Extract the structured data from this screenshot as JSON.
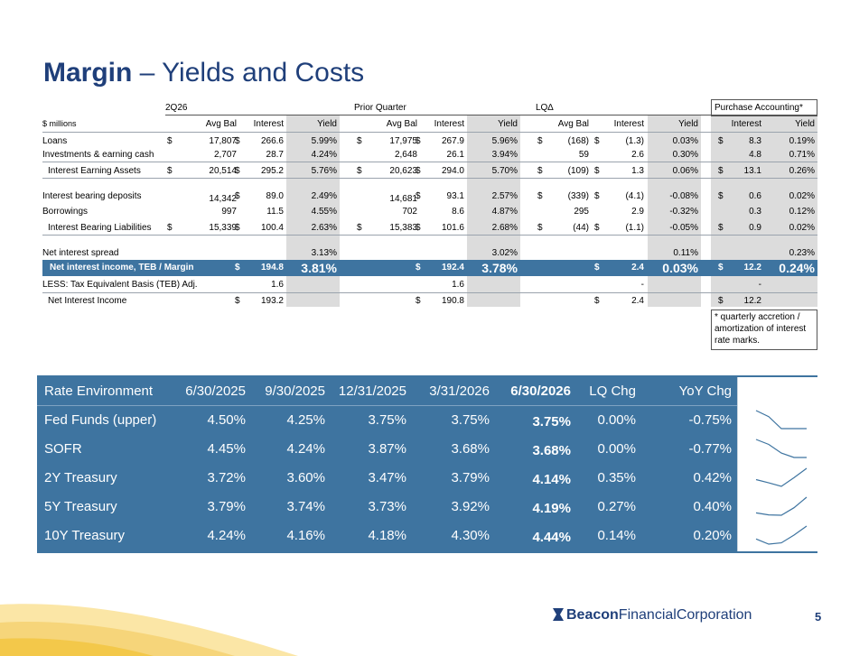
{
  "title": {
    "bold": "Margin",
    "rest": " – Yields and Costs"
  },
  "groups": {
    "cur": "2Q26",
    "prior": "Prior Quarter",
    "lq": "LQ∆",
    "pa": "Purchase Accounting*"
  },
  "col_headers": {
    "units": "$ millions",
    "avg_bal": "Avg Bal",
    "interest": "Interest",
    "yield": "Yield"
  },
  "rows": [
    {
      "label": "Loans",
      "c": [
        "$",
        "17,807",
        "$",
        "266.6",
        "5.99%",
        "$",
        "17,975",
        "$",
        "267.9",
        "5.96%",
        "$",
        "(168)",
        "$",
        "(1.3)",
        "0.03%",
        "$",
        "8.3",
        "0.19%"
      ]
    },
    {
      "label": "Investments & earning cash",
      "c": [
        "",
        "2,707",
        "",
        "28.7",
        "4.24%",
        "",
        "2,648",
        "",
        "26.1",
        "3.94%",
        "",
        "59",
        "",
        "2.6",
        "0.30%",
        "",
        "4.8",
        "0.71%"
      ]
    },
    {
      "label": "Interest Earning Assets",
      "c": [
        "$",
        "20,514",
        "$",
        "295.2",
        "5.76%",
        "$",
        "20,623",
        "$",
        "294.0",
        "5.70%",
        "$",
        "(109)",
        "$",
        "1.3",
        "0.06%",
        "$",
        "13.1",
        "0.26%"
      ]
    },
    {
      "label": "Interest bearing deposits",
      "c": [
        "",
        "14,342",
        "$",
        "89.0",
        "2.49%",
        "",
        "14,681",
        "$",
        "93.1",
        "2.57%",
        "$",
        "(339)",
        "$",
        "(4.1)",
        "-0.08%",
        "$",
        "0.6",
        "0.02%"
      ]
    },
    {
      "label": "Borrowings",
      "c": [
        "",
        "997",
        "",
        "11.5",
        "4.55%",
        "",
        "702",
        "",
        "8.6",
        "4.87%",
        "",
        "295",
        "",
        "2.9",
        "-0.32%",
        "",
        "0.3",
        "0.12%"
      ]
    },
    {
      "label": "Interest Bearing Liabilities",
      "c": [
        "$",
        "15,339",
        "$",
        "100.4",
        "2.63%",
        "$",
        "15,383",
        "$",
        "101.6",
        "2.68%",
        "$",
        "(44)",
        "$",
        "(1.1)",
        "-0.05%",
        "$",
        "0.9",
        "0.02%"
      ]
    },
    {
      "label": "Net interest spread",
      "c": [
        "",
        "",
        "",
        "",
        "3.13%",
        "",
        "",
        "",
        "",
        "3.02%",
        "",
        "",
        "",
        "",
        "0.11%",
        "",
        "",
        "0.23%"
      ]
    }
  ],
  "nii": {
    "label": "Net interest income, TEB / Margin",
    "cur_d": "$",
    "cur_int": "194.8",
    "cur_yld": "3.81%",
    "pr_d": "$",
    "pr_int": "192.4",
    "pr_yld": "3.78%",
    "lq_d": "$",
    "lq_int": "2.4",
    "lq_yld": "0.03%",
    "pa_d": "$",
    "pa_int": "12.2",
    "pa_yld": "0.24%"
  },
  "teb": {
    "label": "LESS: Tax Equivalent Basis (TEB) Adj.",
    "cur": "1.6",
    "pr": "1.6",
    "lq": "-",
    "pa": "-"
  },
  "netinc": {
    "label": "Net Interest Income",
    "cur_d": "$",
    "cur": "193.2",
    "pr_d": "$",
    "pr": "190.8",
    "lq_d": "$",
    "lq": "2.4",
    "pa_d": "$",
    "pa": "12.2"
  },
  "pa_note": [
    "* quarterly accretion /",
    "amortization of interest",
    "rate marks."
  ],
  "rate_env": {
    "headers": [
      "Rate Environment",
      "6/30/2025",
      "9/30/2025",
      "12/31/2025",
      "3/31/2026",
      "6/30/2026",
      "LQ Chg",
      "YoY Chg"
    ],
    "rows": [
      {
        "name": "Fed Funds (upper)",
        "vals": [
          "4.50%",
          "4.25%",
          "3.75%",
          "3.75%",
          "3.75%",
          "0.00%",
          "-0.75%"
        ],
        "series": [
          4.5,
          4.25,
          3.75,
          3.75,
          3.75
        ]
      },
      {
        "name": "SOFR",
        "vals": [
          "4.45%",
          "4.24%",
          "3.87%",
          "3.68%",
          "3.68%",
          "0.00%",
          "-0.77%"
        ],
        "series": [
          4.45,
          4.24,
          3.87,
          3.68,
          3.68
        ]
      },
      {
        "name": "2Y Treasury",
        "vals": [
          "3.72%",
          "3.60%",
          "3.47%",
          "3.79%",
          "4.14%",
          "0.35%",
          "0.42%"
        ],
        "series": [
          3.72,
          3.6,
          3.47,
          3.79,
          4.14
        ]
      },
      {
        "name": "5Y Treasury",
        "vals": [
          "3.79%",
          "3.74%",
          "3.73%",
          "3.92%",
          "4.19%",
          "0.27%",
          "0.40%"
        ],
        "series": [
          3.79,
          3.74,
          3.73,
          3.92,
          4.19
        ]
      },
      {
        "name": "10Y Treasury",
        "vals": [
          "4.24%",
          "4.16%",
          "4.18%",
          "4.30%",
          "4.44%",
          "0.14%",
          "0.20%"
        ],
        "series": [
          4.24,
          4.16,
          4.18,
          4.3,
          4.44
        ]
      }
    ]
  },
  "footer": {
    "logo_bold": "Beacon",
    "logo_rest": "FinancialCorporation",
    "page": "5"
  },
  "colors": {
    "navy": "#1f3f7a",
    "teal": "#3e74a0",
    "shade": "#dcdcdc",
    "swoosh": "#f3c84a"
  }
}
